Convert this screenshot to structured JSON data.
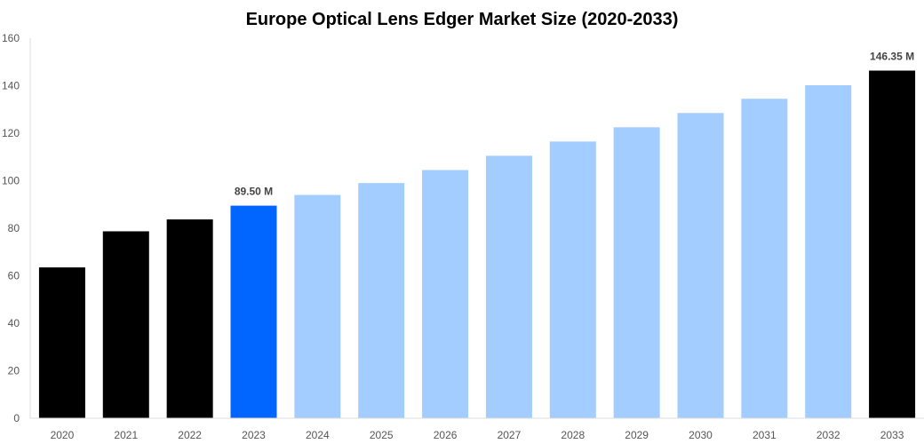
{
  "chart_data": {
    "type": "bar",
    "title": "Europe Optical Lens Edger Market Size (2020-2033)",
    "xlabel": "",
    "ylabel": "",
    "ylim": [
      0,
      160
    ],
    "yticks": [
      0,
      20,
      40,
      60,
      80,
      100,
      120,
      140,
      160
    ],
    "categories": [
      "2020",
      "2021",
      "2022",
      "2023",
      "2024",
      "2025",
      "2026",
      "2027",
      "2028",
      "2029",
      "2030",
      "2031",
      "2032",
      "2033"
    ],
    "values": [
      63.5,
      78.7,
      83.7,
      89.5,
      94.0,
      99.0,
      104.5,
      110.5,
      116.5,
      122.5,
      128.5,
      134.5,
      140.2,
      146.35
    ],
    "colors": [
      "#000000",
      "#000000",
      "#000000",
      "#0066ff",
      "#a3cdff",
      "#a3cdff",
      "#a3cdff",
      "#a3cdff",
      "#a3cdff",
      "#a3cdff",
      "#a3cdff",
      "#a3cdff",
      "#a3cdff",
      "#000000"
    ],
    "data_labels": {
      "2023": "89.50 M",
      "2033": "146.35 M"
    },
    "grid": false,
    "legend": "none"
  }
}
